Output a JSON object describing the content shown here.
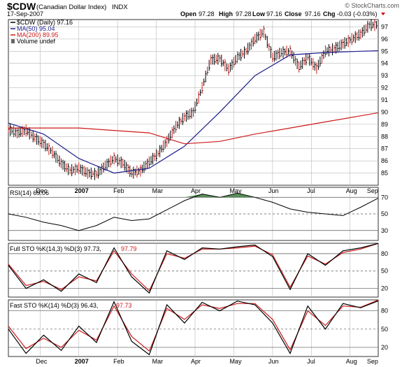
{
  "header": {
    "symbol": "$CDW",
    "name": "(Canadian Dollar Index)",
    "exchange": "INDX",
    "date": "17-Sep-2007",
    "brand": "© StockCharts.com",
    "open_label": "Open",
    "open": "97.28",
    "high_label": "High",
    "high": "97.28",
    "low_label": "Low",
    "low": "97.16",
    "close_label": "Close",
    "close": "97.16",
    "chg_label": "Chg",
    "chg": "-0.03 (-0.03%)"
  },
  "legend": {
    "price": "$CDW (Daily) 97.16",
    "ma50": "MA(50) 95.04",
    "ma200": "MA(200) 89.95",
    "volume": "Volume undef"
  },
  "colors": {
    "price": "#000000",
    "ma50": "#1a1a8c",
    "ma200": "#cc1a1a",
    "rsi_fill": "#3d7a3d",
    "grid": "#b8b8b8",
    "signal": "#cc1a1a",
    "down_arrow": "#cc0000"
  },
  "x_axis_labels": [
    "Dec",
    "2007",
    "Feb",
    "Mar",
    "Apr",
    "May",
    "Jun",
    "Jul",
    "Aug",
    "Sep"
  ],
  "chart_data": [
    {
      "type": "line",
      "title": "$CDW (Daily) 97.16",
      "ylim": [
        84,
        97.6
      ],
      "yticks": [
        85,
        86,
        87,
        88,
        89,
        90,
        91,
        92,
        93,
        94,
        95,
        96,
        97
      ],
      "series": [
        {
          "name": "$CDW (Daily)",
          "x": [
            0,
            5,
            10,
            15,
            20,
            25,
            30,
            35,
            40,
            45,
            50,
            55,
            60,
            65,
            70,
            75,
            80,
            85,
            90,
            95,
            100,
            105,
            110,
            115,
            120,
            125,
            130,
            135,
            140,
            145,
            150,
            155,
            160,
            165,
            170,
            175,
            180,
            185,
            190,
            195,
            200,
            205,
            210
          ],
          "values": [
            88.6,
            88.3,
            88.5,
            87.9,
            87.4,
            86.7,
            85.8,
            85.2,
            85.4,
            85.0,
            84.9,
            85.6,
            86.2,
            85.8,
            85.0,
            85.2,
            85.9,
            86.6,
            87.6,
            88.8,
            89.6,
            90.0,
            92.0,
            94.3,
            94.4,
            93.5,
            94.5,
            95.0,
            96.0,
            96.6,
            94.5,
            94.9,
            95.0,
            93.7,
            94.5,
            93.6,
            95.0,
            95.2,
            95.6,
            96.0,
            96.4,
            97.16,
            97.16
          ]
        },
        {
          "name": "MA(50) 95.04",
          "x": [
            0,
            20,
            40,
            60,
            80,
            100,
            120,
            140,
            160,
            180,
            200,
            210
          ],
          "values": [
            89.1,
            88.2,
            86.2,
            85.0,
            85.4,
            87.2,
            90.0,
            93.0,
            94.7,
            94.9,
            95.0,
            95.04
          ]
        },
        {
          "name": "MA(200) 89.95",
          "x": [
            0,
            40,
            80,
            100,
            120,
            140,
            160,
            180,
            200,
            210
          ],
          "values": [
            88.7,
            88.7,
            88.3,
            87.4,
            87.6,
            88.2,
            88.7,
            89.2,
            89.7,
            89.95
          ]
        }
      ]
    },
    {
      "type": "line",
      "title": "RSI(14) 69.06",
      "ylim": [
        18,
        82
      ],
      "yticks": [
        70,
        50,
        30
      ],
      "series": [
        {
          "name": "RSI(14)",
          "x": [
            0,
            10,
            20,
            30,
            40,
            50,
            60,
            70,
            80,
            90,
            100,
            110,
            120,
            130,
            140,
            150,
            160,
            170,
            180,
            190,
            200,
            210
          ],
          "values": [
            50,
            46,
            40,
            36,
            30,
            36,
            46,
            42,
            44,
            55,
            66,
            74,
            70,
            75,
            70,
            64,
            56,
            52,
            50,
            48,
            58,
            69.06
          ]
        }
      ]
    },
    {
      "type": "line",
      "title": "Full STO %K(14,3) %D(3) 97.73, 97.79",
      "ylim": [
        5,
        98
      ],
      "yticks": [
        80,
        50,
        20
      ],
      "series": [
        {
          "name": "Full STO %K(14,3)",
          "x": [
            0,
            10,
            20,
            30,
            40,
            50,
            60,
            70,
            80,
            90,
            100,
            110,
            120,
            130,
            140,
            150,
            160,
            170,
            180,
            190,
            200,
            210
          ],
          "values": [
            60,
            20,
            35,
            15,
            45,
            30,
            90,
            40,
            12,
            85,
            70,
            90,
            88,
            92,
            95,
            75,
            18,
            80,
            60,
            85,
            90,
            97.73
          ]
        },
        {
          "name": "%D(3)",
          "x": [
            0,
            10,
            20,
            30,
            40,
            50,
            60,
            70,
            80,
            90,
            100,
            110,
            120,
            130,
            140,
            150,
            160,
            170,
            180,
            190,
            200,
            210
          ],
          "values": [
            62,
            25,
            32,
            18,
            40,
            33,
            85,
            45,
            16,
            80,
            72,
            88,
            88,
            90,
            93,
            78,
            22,
            76,
            62,
            82,
            88,
            97.79
          ]
        }
      ]
    },
    {
      "type": "line",
      "title": "Fast STO %K(14) %D(3) 96.43, 97.73",
      "ylim": [
        5,
        98
      ],
      "yticks": [
        80,
        50,
        20
      ],
      "series": [
        {
          "name": "Fast STO %K(14)",
          "x": [
            0,
            10,
            20,
            30,
            40,
            50,
            60,
            70,
            80,
            90,
            100,
            110,
            120,
            130,
            140,
            150,
            160,
            170,
            180,
            190,
            200,
            210
          ],
          "values": [
            50,
            10,
            40,
            15,
            55,
            28,
            95,
            30,
            8,
            90,
            60,
            94,
            80,
            96,
            90,
            60,
            10,
            88,
            50,
            92,
            85,
            96.43
          ]
        },
        {
          "name": "%D(3)",
          "x": [
            0,
            10,
            20,
            30,
            40,
            50,
            60,
            70,
            80,
            90,
            100,
            110,
            120,
            130,
            140,
            150,
            160,
            170,
            180,
            190,
            200,
            210
          ],
          "values": [
            55,
            18,
            35,
            20,
            48,
            32,
            88,
            38,
            14,
            84,
            66,
            90,
            84,
            92,
            92,
            66,
            16,
            80,
            56,
            88,
            86,
            97.73
          ]
        }
      ]
    }
  ]
}
